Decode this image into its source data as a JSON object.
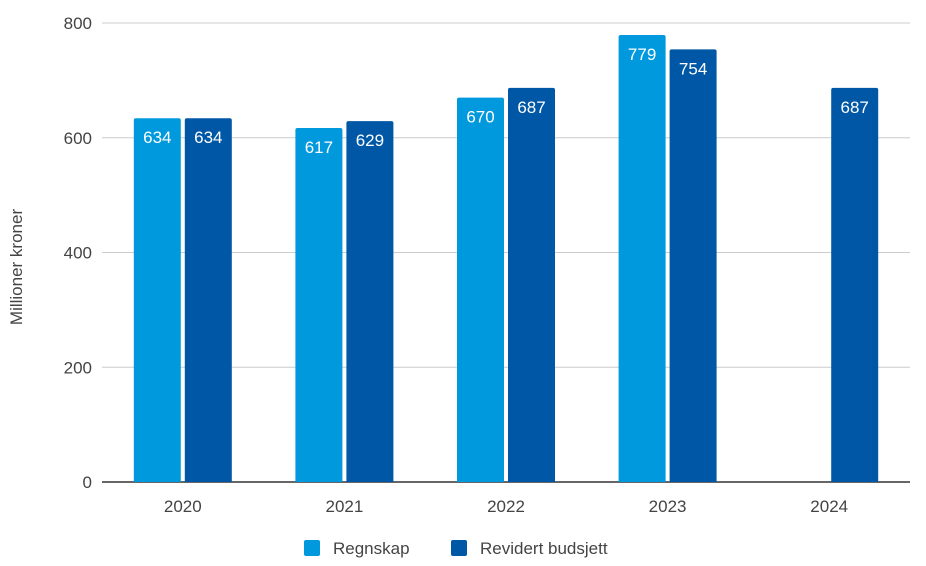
{
  "chart_data": {
    "type": "bar",
    "title": "",
    "ylabel": "Millioner kroner",
    "xlabel": "",
    "ylim": [
      0,
      800
    ],
    "yticks": [
      0,
      200,
      400,
      600,
      800
    ],
    "grid": true,
    "legend_position": "bottom",
    "categories": [
      "2020",
      "2021",
      "2022",
      "2023",
      "2024"
    ],
    "series": [
      {
        "name": "Regnskap",
        "color": "#0099dd",
        "values": [
          634,
          617,
          670,
          779,
          null
        ]
      },
      {
        "name": "Revidert budsjett",
        "color": "#0057a5",
        "values": [
          634,
          629,
          687,
          754,
          687
        ]
      }
    ]
  }
}
